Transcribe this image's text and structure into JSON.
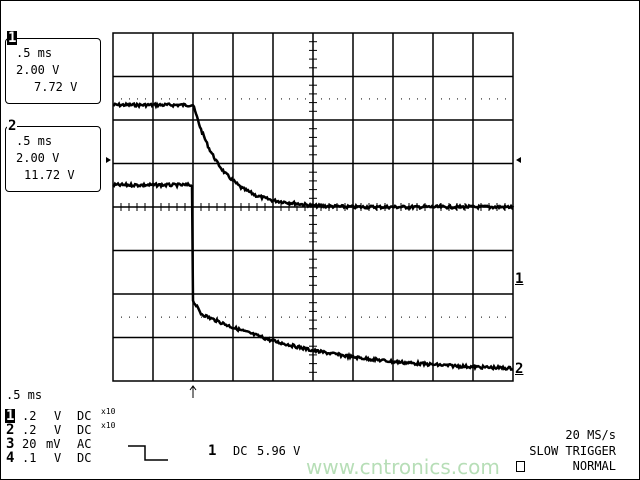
{
  "channel_boxes": [
    {
      "id": "1",
      "timebase": ".5 ms",
      "volts_div": "2.00 V",
      "offset": "7.72 V"
    },
    {
      "id": "2",
      "timebase": ".5 ms",
      "volts_div": "2.00 V",
      "offset": "11.72 V"
    }
  ],
  "timebase_label": ".5 ms",
  "channels": [
    {
      "id": "1",
      "scale": ".2",
      "unit": "V",
      "coupling": "DC",
      "probe": "x10"
    },
    {
      "id": "2",
      "scale": ".2",
      "unit": "V",
      "coupling": "DC",
      "probe": "x10"
    },
    {
      "id": "3",
      "scale": "20",
      "unit": "mV",
      "coupling": "AC",
      "probe": ""
    },
    {
      "id": "4",
      "scale": ".1",
      "unit": "V",
      "coupling": "DC",
      "probe": ""
    }
  ],
  "trigger": {
    "source": "1",
    "coupling": "DC",
    "level": "5.96 V",
    "slope": "falling"
  },
  "status": {
    "sample_rate": "20 MS/s",
    "trigger_mode": "SLOW TRIGGER",
    "acquisition": "NORMAL"
  },
  "trace_markers": [
    "1",
    "2"
  ],
  "watermark": "www.cntronics.com",
  "chart_data": {
    "type": "line",
    "title": "",
    "xlabel": "",
    "ylabel": "",
    "x_unit": "ms",
    "y_unit": "V",
    "x_per_div": 0.5,
    "y_per_div": 2.0,
    "xlim": [
      0,
      5
    ],
    "ylim": [
      -8,
      8
    ],
    "grid": true,
    "trigger_time": 1.0,
    "series": [
      {
        "x": [
          0,
          0.5,
          1.0,
          1.1,
          1.2,
          1.3,
          1.4,
          1.6,
          1.8,
          2.0,
          2.5,
          3.0,
          4.0,
          5.0
        ],
        "y": [
          4.69,
          4.69,
          4.69,
          3.56,
          2.7,
          2.05,
          1.55,
          0.89,
          0.51,
          0.3,
          0.06,
          0.0,
          0.0,
          0.0
        ]
      },
      {
        "x": [
          0,
          0.5,
          0.999,
          1.0,
          1.05,
          1.1,
          1.21,
          1.5,
          2.0,
          2.5,
          3.0,
          3.5,
          4.0,
          4.5,
          5.0
        ],
        "y": [
          1.01,
          1.01,
          1.01,
          -4.3,
          -4.6,
          -4.9,
          -5.1,
          -5.54,
          -6.16,
          -6.6,
          -6.9,
          -7.11,
          -7.25,
          -7.35,
          -7.42
        ]
      }
    ]
  }
}
